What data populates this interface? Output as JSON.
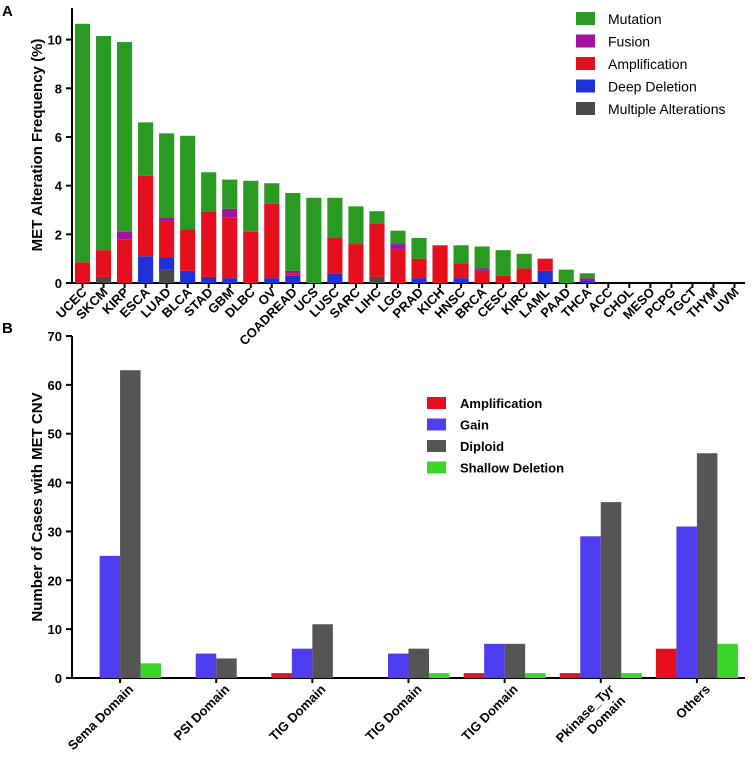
{
  "colors": {
    "mutation": "#2b9a22",
    "fusion": "#a2139f",
    "amplification": "#e60f1e",
    "deep_deletion": "#1f30d6",
    "multiple": "#4a4a4a",
    "gain": "#4f3df0",
    "diploid": "#555555",
    "shallow_deletion": "#3bd52a"
  },
  "chart_data": [
    {
      "panel": "A",
      "type": "bar",
      "stacked": true,
      "ylabel": "MET Alteration Frequency (%)",
      "xlabel": "",
      "ylim": [
        0,
        11.3
      ],
      "yticks": [
        0,
        2,
        4,
        6,
        8,
        10
      ],
      "legend_position": "top-right",
      "categories": [
        "UCEC",
        "SKCM",
        "KIRP",
        "ESCA",
        "LUAD",
        "BLCA",
        "STAD",
        "GBM",
        "DLBC",
        "OV",
        "COADREAD",
        "UCS",
        "LUSC",
        "SARC",
        "LIHC",
        "LGG",
        "PRAD",
        "KICH",
        "HNSC",
        "BRCA",
        "CESC",
        "KIRC",
        "LAML",
        "PAAD",
        "THCA",
        "ACC",
        "CHOL",
        "MESO",
        "PCPG",
        "TGCT",
        "THYM",
        "UVM"
      ],
      "series": [
        {
          "name": "Multiple Alterations",
          "color_key": "multiple",
          "values": [
            0,
            0.25,
            0,
            0,
            0.55,
            0,
            0,
            0,
            0,
            0,
            0,
            0,
            0,
            0,
            0.25,
            0,
            0,
            0,
            0,
            0,
            0,
            0,
            0,
            0,
            0,
            0,
            0,
            0,
            0,
            0,
            0,
            0
          ]
        },
        {
          "name": "Deep Deletion",
          "color_key": "deep_deletion",
          "values": [
            0,
            0,
            0,
            1.1,
            0.5,
            0.5,
            0.25,
            0.2,
            0,
            0.2,
            0.3,
            0,
            0.4,
            0,
            0,
            0,
            0.2,
            0,
            0.2,
            0,
            0,
            0,
            0.5,
            0,
            0.1,
            0,
            0,
            0,
            0,
            0,
            0,
            0
          ]
        },
        {
          "name": "Amplification",
          "color_key": "amplification",
          "values": [
            0.85,
            1.1,
            1.8,
            3.3,
            1.5,
            1.7,
            2.7,
            2.5,
            2.1,
            3.05,
            0.1,
            0,
            1.45,
            1.6,
            2.2,
            1.4,
            0.8,
            1.55,
            0.6,
            0.5,
            0.3,
            0.6,
            0.5,
            0,
            0,
            0,
            0,
            0,
            0,
            0,
            0,
            0
          ]
        },
        {
          "name": "Fusion",
          "color_key": "fusion",
          "values": [
            0,
            0,
            0.3,
            0,
            0.15,
            0,
            0,
            0.35,
            0,
            0,
            0.1,
            0,
            0,
            0,
            0,
            0.2,
            0,
            0,
            0,
            0.1,
            0,
            0,
            0,
            0,
            0.1,
            0,
            0,
            0,
            0,
            0,
            0,
            0
          ]
        },
        {
          "name": "Mutation",
          "color_key": "mutation",
          "values": [
            9.8,
            8.8,
            7.8,
            2.2,
            3.45,
            3.85,
            1.6,
            1.2,
            2.1,
            0.85,
            3.2,
            3.5,
            1.65,
            1.55,
            0.5,
            0.55,
            0.85,
            0,
            0.75,
            0.9,
            1.05,
            0.6,
            0,
            0.55,
            0.2,
            0,
            0,
            0,
            0,
            0,
            0,
            0
          ]
        }
      ],
      "legend": [
        "Mutation",
        "Fusion",
        "Amplification",
        "Deep Deletion",
        "Multiple Alterations"
      ]
    },
    {
      "panel": "B",
      "type": "bar",
      "stacked": false,
      "ylabel": "Number of Cases with MET CNV",
      "xlabel": "",
      "ylim": [
        0,
        70
      ],
      "yticks": [
        0,
        10,
        20,
        30,
        40,
        50,
        60,
        70
      ],
      "legend_position": "top-right",
      "categories": [
        "Sema Domain",
        "PSI Domain",
        "TIG Domain",
        "TIG Domain",
        "TIG Domain",
        "Pkinase_Tyr\nDomain",
        "Others"
      ],
      "series": [
        {
          "name": "Amplification",
          "color_key": "amplification",
          "values": [
            0,
            0,
            1,
            0,
            1,
            1,
            6
          ]
        },
        {
          "name": "Gain",
          "color_key": "gain",
          "values": [
            25,
            5,
            6,
            5,
            7,
            29,
            31
          ]
        },
        {
          "name": "Diploid",
          "color_key": "diploid",
          "values": [
            63,
            4,
            11,
            6,
            7,
            36,
            46
          ]
        },
        {
          "name": "Shallow Deletion",
          "color_key": "shallow_deletion",
          "values": [
            3,
            0,
            0,
            1,
            1,
            1,
            7
          ]
        }
      ],
      "legend": [
        "Amplification",
        "Gain",
        "Diploid",
        "Shallow Deletion"
      ]
    }
  ]
}
